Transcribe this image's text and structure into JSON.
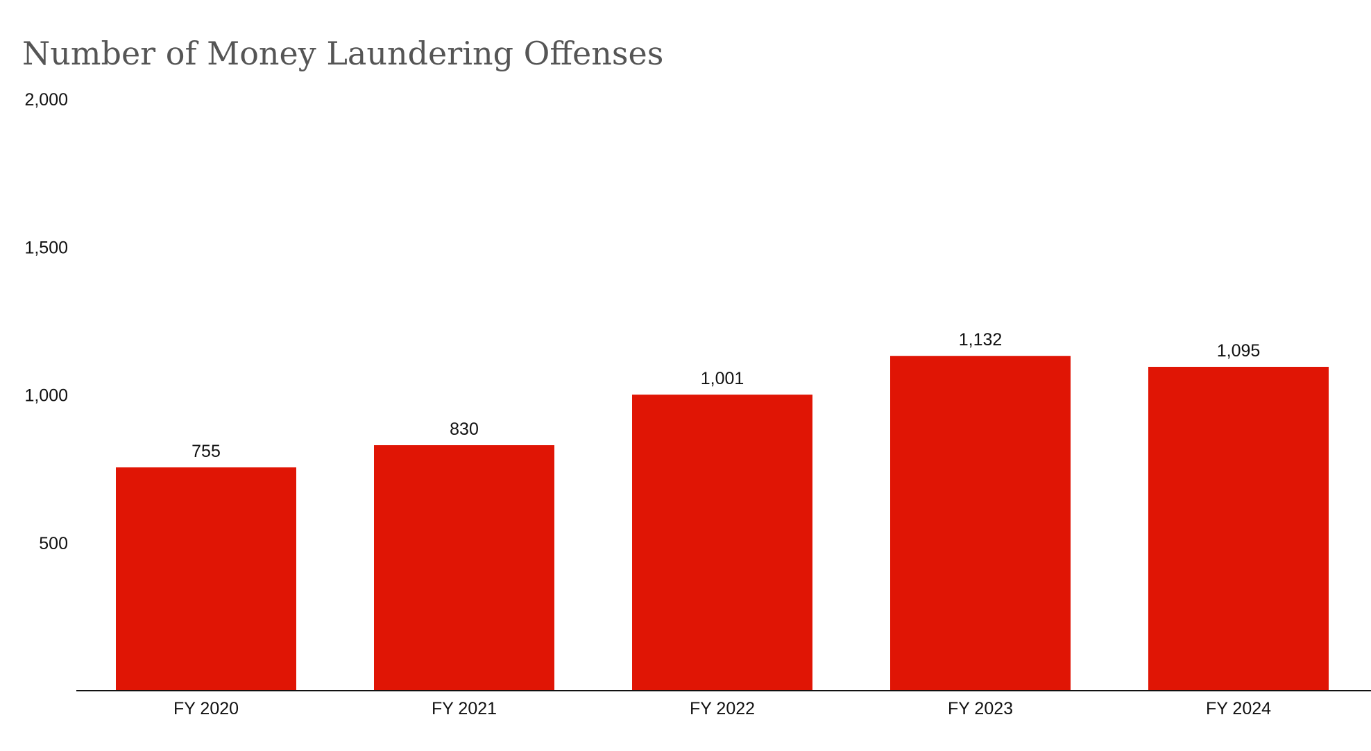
{
  "chart_data": {
    "type": "bar",
    "title": "Number of Money Laundering Offenses",
    "categories": [
      "FY 2020",
      "FY 2021",
      "FY 2022",
      "FY 2023",
      "FY 2024"
    ],
    "values": [
      755,
      830,
      1001,
      1132,
      1095
    ],
    "data_labels": [
      "755",
      "830",
      "1,001",
      "1,132",
      "1,095"
    ],
    "yticks": [
      500,
      1000,
      1500,
      2000
    ],
    "ytick_labels": [
      "500",
      "1,000",
      "1,500",
      "2,000"
    ],
    "ylim": [
      0,
      2000
    ],
    "grid": false,
    "legend": "none",
    "bar_color": "#E01505"
  }
}
